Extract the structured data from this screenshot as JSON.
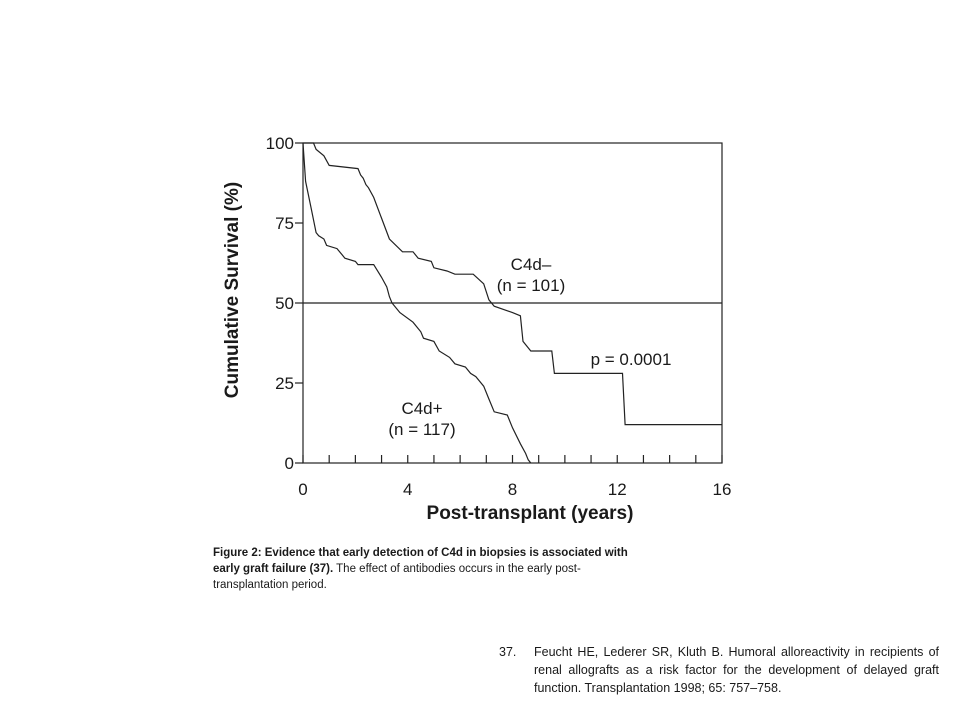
{
  "chart_data": {
    "type": "line",
    "xlabel": "Post-transplant (years)",
    "ylabel": "Cumulative Survival (%)",
    "xlim": [
      0,
      16
    ],
    "ylim": [
      0,
      100
    ],
    "xticks": [
      0,
      4,
      8,
      12,
      16
    ],
    "yticks": [
      0,
      25,
      50,
      75,
      100
    ],
    "x_minor_step": 1,
    "grid": false,
    "reference_line": {
      "y": 50
    },
    "series": [
      {
        "name": "C4d–",
        "count_label": "(n = 101)",
        "points": [
          [
            0,
            100
          ],
          [
            0.4,
            100
          ],
          [
            0.5,
            98
          ],
          [
            0.8,
            96
          ],
          [
            1.0,
            93
          ],
          [
            2.1,
            92
          ],
          [
            2.2,
            90
          ],
          [
            2.3,
            89
          ],
          [
            2.4,
            87
          ],
          [
            2.5,
            86
          ],
          [
            2.7,
            83
          ],
          [
            3.3,
            70
          ],
          [
            3.8,
            66
          ],
          [
            4.2,
            66
          ],
          [
            4.4,
            64
          ],
          [
            4.9,
            63
          ],
          [
            5.0,
            61
          ],
          [
            5.5,
            60
          ],
          [
            5.8,
            59
          ],
          [
            6.5,
            59
          ],
          [
            6.9,
            56
          ],
          [
            7.1,
            51
          ],
          [
            7.3,
            49
          ],
          [
            8.0,
            47
          ],
          [
            8.3,
            46
          ],
          [
            8.4,
            38
          ],
          [
            8.7,
            35
          ],
          [
            9.5,
            35
          ],
          [
            9.6,
            28
          ],
          [
            12.2,
            28
          ],
          [
            12.3,
            12
          ],
          [
            16,
            12
          ]
        ]
      },
      {
        "name": "C4d+",
        "count_label": "(n = 117)",
        "points": [
          [
            0,
            100
          ],
          [
            0.1,
            88
          ],
          [
            0.3,
            80
          ],
          [
            0.5,
            72
          ],
          [
            0.6,
            71
          ],
          [
            0.8,
            70
          ],
          [
            0.9,
            68
          ],
          [
            1.3,
            67
          ],
          [
            1.5,
            65
          ],
          [
            1.6,
            64
          ],
          [
            2.0,
            63
          ],
          [
            2.1,
            62
          ],
          [
            2.7,
            62
          ],
          [
            3.0,
            58
          ],
          [
            3.2,
            55
          ],
          [
            3.3,
            52
          ],
          [
            3.4,
            50
          ],
          [
            3.7,
            47
          ],
          [
            4.2,
            44
          ],
          [
            4.5,
            41
          ],
          [
            4.6,
            39
          ],
          [
            5.0,
            38
          ],
          [
            5.2,
            35
          ],
          [
            5.6,
            33
          ],
          [
            5.8,
            31
          ],
          [
            6.2,
            30
          ],
          [
            6.4,
            28
          ],
          [
            6.6,
            27
          ],
          [
            6.9,
            24
          ],
          [
            7.1,
            20
          ],
          [
            7.3,
            16
          ],
          [
            7.8,
            15
          ],
          [
            8.0,
            11
          ],
          [
            8.3,
            6
          ],
          [
            8.5,
            3
          ],
          [
            8.6,
            1
          ],
          [
            8.7,
            0
          ]
        ]
      }
    ],
    "annotations": [
      "p = 0.0001"
    ]
  },
  "caption": {
    "label": "Figure 2:",
    "bold_text": "Evidence that early detection of C4d in biopsies is associated with early graft failure (37).",
    "text": "The effect of antibodies occurs in the early post-transplantation period."
  },
  "reference": {
    "number": "37.",
    "text": "Feucht HE, Lederer SR, Kluth B. Humoral alloreactivity in recipients of renal allografts as a risk factor for the development of delayed graft function. Transplantation 1998; 65: 757–758."
  }
}
